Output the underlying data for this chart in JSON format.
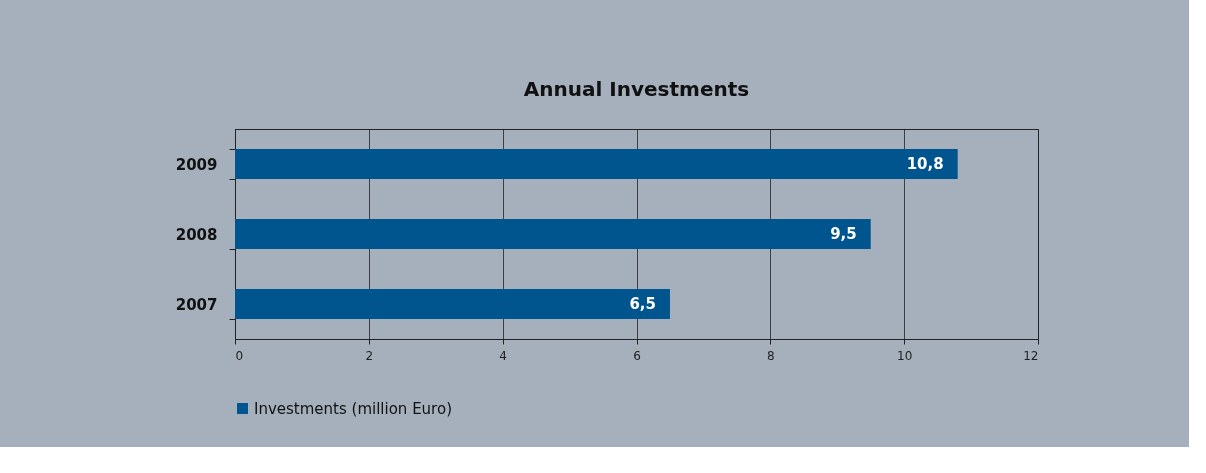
{
  "chart_data": {
    "type": "bar",
    "orientation": "horizontal",
    "title": "Annual Investments",
    "categories": [
      "2009",
      "2008",
      "2007"
    ],
    "series": [
      {
        "name": "Investments (million Euro)",
        "color": "#00558f",
        "values": [
          10.8,
          9.5,
          6.5
        ],
        "value_labels": [
          "10,8",
          "9,5",
          "6,5"
        ]
      }
    ],
    "xlim": [
      0,
      12
    ],
    "xticks": [
      0,
      2,
      4,
      6,
      8,
      10,
      12
    ],
    "grid": "x",
    "legend": "bottom"
  }
}
